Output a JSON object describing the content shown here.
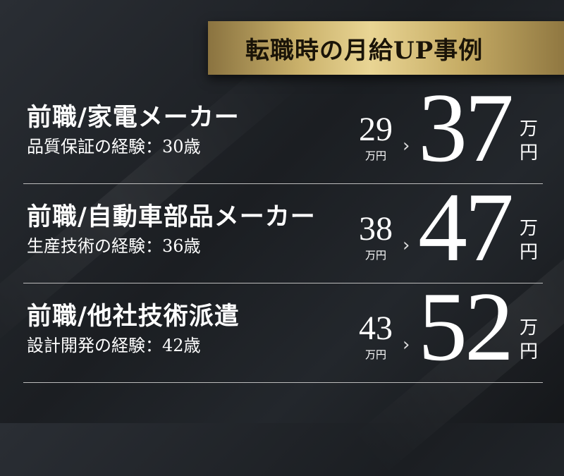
{
  "header": {
    "title": "転職時の月給UP事例"
  },
  "colors": {
    "background": "#1f2227",
    "gold": "#d9c47f",
    "text": "#ffffff"
  },
  "cases": [
    {
      "title": "前職/家電メーカー",
      "subtitle": "品質保証の経験：30歳",
      "before": "29",
      "before_unit": "万円",
      "arrow": "›",
      "after": "37",
      "after_unit_top": "万",
      "after_unit_bottom": "円"
    },
    {
      "title": "前職/自動車部品メーカー",
      "subtitle": "生産技術の経験：36歳",
      "before": "38",
      "before_unit": "万円",
      "arrow": "›",
      "after": "47",
      "after_unit_top": "万",
      "after_unit_bottom": "円"
    },
    {
      "title": "前職/他社技術派遣",
      "subtitle": "設計開発の経験：42歳",
      "before": "43",
      "before_unit": "万円",
      "arrow": "›",
      "after": "52",
      "after_unit_top": "万",
      "after_unit_bottom": "円"
    }
  ]
}
